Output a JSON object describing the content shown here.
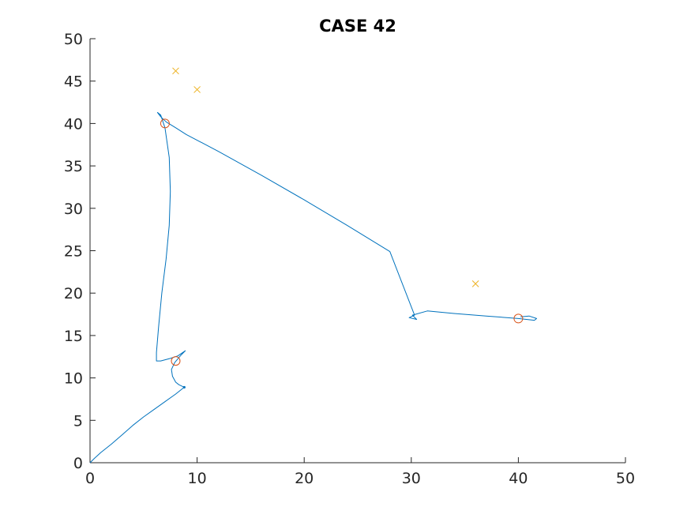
{
  "chart_data": {
    "type": "line",
    "title": "CASE 42",
    "xlabel": "",
    "ylabel": "",
    "xlim": [
      0,
      50
    ],
    "ylim": [
      0,
      50
    ],
    "xticks": [
      "0",
      "10",
      "20",
      "30",
      "40",
      "50"
    ],
    "yticks": [
      "0",
      "5",
      "10",
      "15",
      "20",
      "25",
      "30",
      "35",
      "40",
      "45",
      "50"
    ],
    "grid": false,
    "legend": "none",
    "colors": {
      "path": "#0072BD",
      "circle": "#D95319",
      "cross": "#EDB120",
      "axis": "#262626"
    },
    "series": [
      {
        "type": "line",
        "color": "#0072BD",
        "points": [
          [
            0,
            0
          ],
          [
            0.4,
            0.5
          ],
          [
            1,
            1.2
          ],
          [
            2,
            2.2
          ],
          [
            3,
            3.3
          ],
          [
            4,
            4.4
          ],
          [
            5,
            5.4
          ],
          [
            6,
            6.3
          ],
          [
            7,
            7.2
          ],
          [
            8,
            8.1
          ],
          [
            8.8,
            8.9
          ],
          [
            8.3,
            9.2
          ],
          [
            8,
            9.5
          ],
          [
            7.7,
            10.2
          ],
          [
            7.6,
            11
          ],
          [
            7.9,
            11.8
          ],
          [
            8.5,
            12.7
          ],
          [
            8.9,
            13.2
          ],
          [
            8.2,
            12.6
          ],
          [
            7.5,
            12.3
          ],
          [
            6.6,
            12
          ],
          [
            6.2,
            12
          ],
          [
            6.2,
            13
          ],
          [
            6.4,
            16
          ],
          [
            6.7,
            20
          ],
          [
            7.1,
            24
          ],
          [
            7.4,
            28
          ],
          [
            7.5,
            32
          ],
          [
            7.4,
            36
          ],
          [
            7,
            39.5
          ],
          [
            6.6,
            41
          ],
          [
            6.3,
            41.3
          ],
          [
            6.6,
            40.8
          ],
          [
            7.1,
            40.2
          ],
          [
            8,
            39.5
          ],
          [
            9,
            38.7
          ],
          [
            12,
            36.7
          ],
          [
            16,
            33.9
          ],
          [
            20,
            31
          ],
          [
            24,
            28
          ],
          [
            28,
            24.9
          ],
          [
            30.3,
            17.4
          ],
          [
            29.8,
            17.1
          ],
          [
            30.5,
            16.9
          ],
          [
            30.1,
            17.4
          ],
          [
            31.5,
            17.9
          ],
          [
            34,
            17.6
          ],
          [
            37,
            17.3
          ],
          [
            40,
            17
          ],
          [
            41.5,
            16.8
          ],
          [
            41.7,
            17
          ],
          [
            41,
            17.3
          ],
          [
            40.2,
            17.2
          ]
        ]
      },
      {
        "type": "scatter",
        "marker": "circle",
        "color": "#D95319",
        "points": [
          [
            7,
            40
          ],
          [
            8,
            12
          ],
          [
            40,
            17
          ]
        ]
      },
      {
        "type": "scatter",
        "marker": "x",
        "color": "#EDB120",
        "points": [
          [
            8,
            46.2
          ],
          [
            10,
            44
          ],
          [
            36,
            21.1
          ]
        ]
      }
    ]
  }
}
